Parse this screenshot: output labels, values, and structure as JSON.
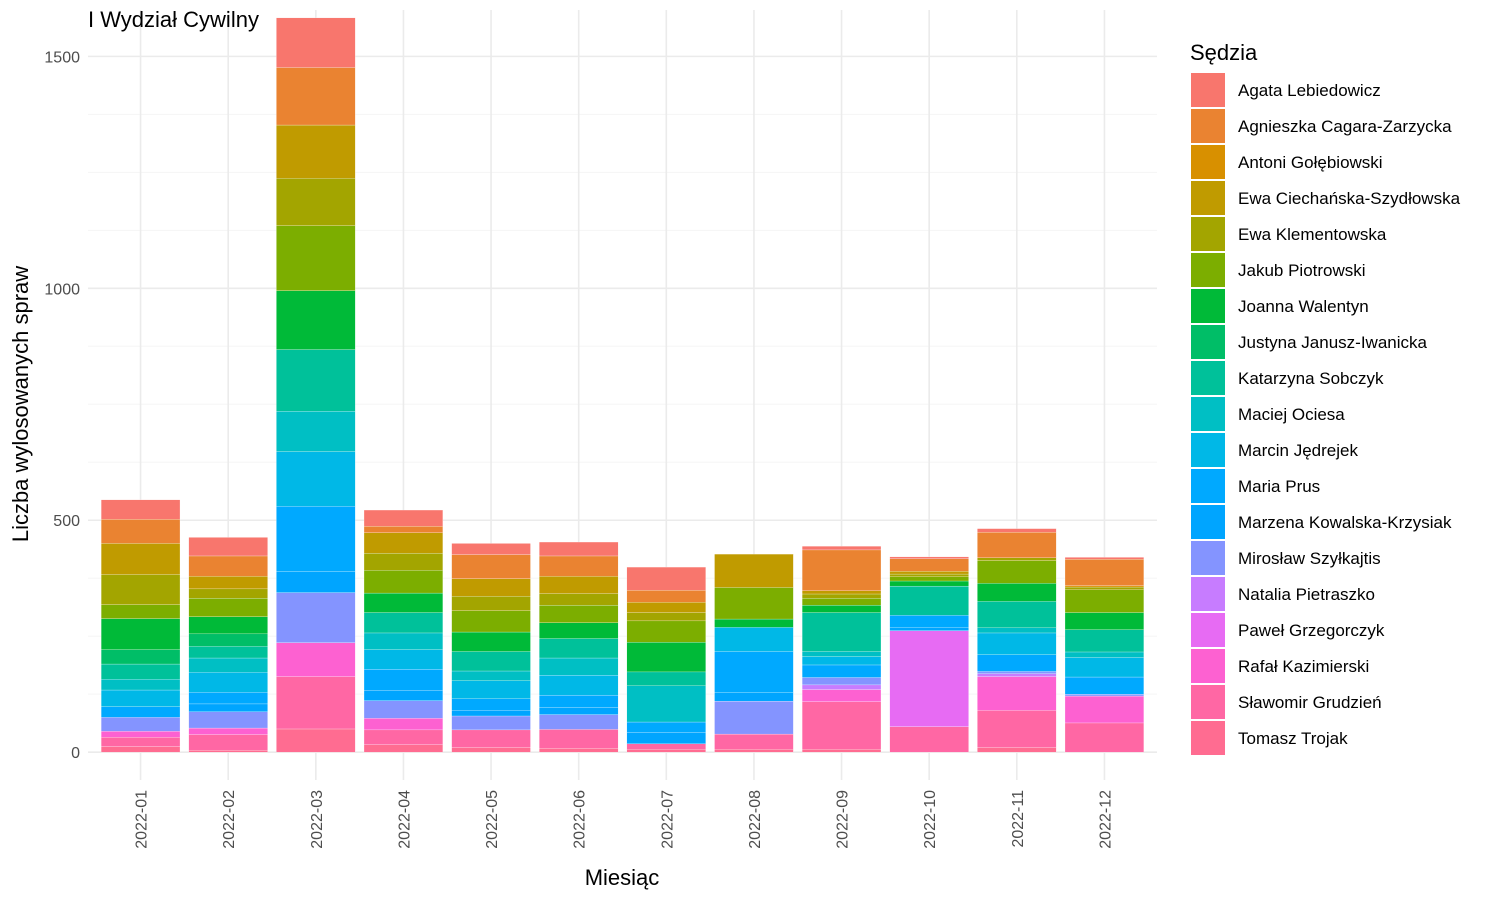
{
  "chart_data": {
    "type": "bar",
    "stacked": true,
    "title": "I Wydział Cywilny",
    "xlabel": "Miesiąc",
    "ylabel": "Liczba wylosowanych spraw",
    "ylim": [
      -60,
      1600
    ],
    "yticks": [
      0,
      500,
      1000,
      1500
    ],
    "grid": true,
    "legend_title": "Sędzia",
    "legend_position": "right",
    "categories": [
      "2022-01",
      "2022-02",
      "2022-03",
      "2022-04",
      "2022-05",
      "2022-06",
      "2022-07",
      "2022-08",
      "2022-09",
      "2022-10",
      "2022-11",
      "2022-12"
    ],
    "series": [
      {
        "name": "Agata Lebiedowicz",
        "color": "#F8766D",
        "values": [
          42,
          40,
          107,
          35,
          24,
          30,
          50,
          0,
          8,
          4,
          8,
          4
        ]
      },
      {
        "name": "Agnieszka Cagara-Zarzycka",
        "color": "#EA8331",
        "values": [
          52,
          44,
          124,
          14,
          52,
          44,
          26,
          0,
          88,
          27,
          55,
          57
        ]
      },
      {
        "name": "Antoni Gołębiowski",
        "color": "#D89000",
        "values": [
          0,
          0,
          0,
          0,
          0,
          0,
          0,
          0,
          0,
          0,
          0,
          3
        ]
      },
      {
        "name": "Ewa Ciechańska-Szydłowska",
        "color": "#C09B00",
        "values": [
          67,
          27,
          115,
          44,
          38,
          37,
          22,
          72,
          7,
          6,
          0,
          0
        ]
      },
      {
        "name": "Ewa Klementowska",
        "color": "#A3A500",
        "values": [
          65,
          20,
          102,
          37,
          31,
          25,
          18,
          0,
          9,
          6,
          6,
          6
        ]
      },
      {
        "name": "Jakub Piotrowski",
        "color": "#7CAE00",
        "values": [
          30,
          40,
          140,
          49,
          46,
          38,
          46,
          68,
          15,
          9,
          49,
          49
        ]
      },
      {
        "name": "Joanna Walentyn",
        "color": "#00BA38",
        "values": [
          67,
          37,
          127,
          42,
          42,
          34,
          64,
          18,
          16,
          11,
          39,
          37
        ]
      },
      {
        "name": "Justyna Janusz-Iwanicka",
        "color": "#00BE67",
        "values": [
          31,
          27,
          0,
          0,
          0,
          0,
          0,
          0,
          0,
          0,
          0,
          0
        ]
      },
      {
        "name": "Katarzyna Sobczyk",
        "color": "#00C19A",
        "values": [
          33,
          25,
          133,
          44,
          42,
          42,
          30,
          0,
          84,
          63,
          57,
          48
        ]
      },
      {
        "name": "Maciej Ociesa",
        "color": "#00BFC4",
        "values": [
          23,
          31,
          87,
          36,
          21,
          37,
          78,
          0,
          11,
          0,
          11,
          12
        ]
      },
      {
        "name": "Marcin Jędrejek",
        "color": "#00B8E7",
        "values": [
          36,
          43,
          118,
          42,
          39,
          43,
          0,
          52,
          18,
          0,
          47,
          42
        ]
      },
      {
        "name": "Maria Prus",
        "color": "#00A9FF",
        "values": [
          23,
          25,
          141,
          46,
          25,
          26,
          22,
          89,
          27,
          27,
          36,
          37
        ]
      },
      {
        "name": "Marzena Kowalska-Krzysiak",
        "color": "#00A5FF",
        "values": [
          0,
          17,
          45,
          22,
          12,
          16,
          25,
          18,
          0,
          6,
          0,
          0
        ]
      },
      {
        "name": "Mirosław Szyłkajtis",
        "color": "#8494FF",
        "values": [
          30,
          35,
          108,
          38,
          30,
          32,
          0,
          71,
          16,
          0,
          5,
          4
        ]
      },
      {
        "name": "Natalia Pietraszko",
        "color": "#C77CFF",
        "values": [
          0,
          0,
          0,
          0,
          0,
          0,
          0,
          0,
          10,
          0,
          6,
          0
        ]
      },
      {
        "name": "Paweł Grzegorczyk",
        "color": "#E76BF3",
        "values": [
          0,
          0,
          0,
          0,
          0,
          0,
          0,
          0,
          0,
          207,
          0,
          0
        ]
      },
      {
        "name": "Rafał Kazimierski",
        "color": "#FD61D1",
        "values": [
          13,
          14,
          73,
          25,
          0,
          0,
          0,
          0,
          26,
          0,
          73,
          58
        ]
      },
      {
        "name": "Sławomir Grudzień",
        "color": "#FF67A4",
        "values": [
          20,
          34,
          113,
          32,
          38,
          41,
          12,
          33,
          103,
          55,
          80,
          63
        ]
      },
      {
        "name": "Tomasz Trojak",
        "color": "#FF6C91",
        "values": [
          12,
          4,
          50,
          16,
          10,
          8,
          6,
          6,
          6,
          0,
          10,
          0
        ]
      }
    ]
  }
}
